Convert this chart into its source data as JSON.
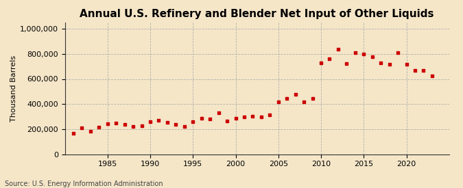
{
  "title": "Annual U.S. Refinery and Blender Net Input of Other Liquids",
  "ylabel": "Thousand Barrels",
  "source": "Source: U.S. Energy Information Administration",
  "background_color": "#f5e6c8",
  "plot_background_color": "#f5e6c8",
  "marker_color": "#cc0000",
  "grid_color": "#aaaaaa",
  "years": [
    1981,
    1982,
    1983,
    1984,
    1985,
    1986,
    1987,
    1988,
    1989,
    1990,
    1991,
    1992,
    1993,
    1994,
    1995,
    1996,
    1997,
    1998,
    1999,
    2000,
    2001,
    2002,
    2003,
    2004,
    2005,
    2006,
    2007,
    2008,
    2009,
    2010,
    2011,
    2012,
    2013,
    2014,
    2015,
    2016,
    2017,
    2018,
    2019,
    2020,
    2021,
    2022,
    2023
  ],
  "values": [
    165000,
    210000,
    185000,
    215000,
    245000,
    250000,
    235000,
    220000,
    225000,
    260000,
    270000,
    255000,
    235000,
    220000,
    260000,
    285000,
    280000,
    330000,
    265000,
    285000,
    300000,
    305000,
    300000,
    315000,
    420000,
    445000,
    480000,
    420000,
    445000,
    730000,
    760000,
    840000,
    725000,
    810000,
    800000,
    775000,
    730000,
    720000,
    810000,
    720000,
    670000,
    670000,
    625000
  ],
  "ylim": [
    0,
    1050000
  ],
  "xlim": [
    1980,
    2025
  ],
  "yticks": [
    0,
    200000,
    400000,
    600000,
    800000,
    1000000
  ],
  "xticks": [
    1985,
    1990,
    1995,
    2000,
    2005,
    2010,
    2015,
    2020
  ],
  "title_fontsize": 11,
  "ylabel_fontsize": 8,
  "tick_fontsize": 8,
  "source_fontsize": 7,
  "marker_size": 12
}
